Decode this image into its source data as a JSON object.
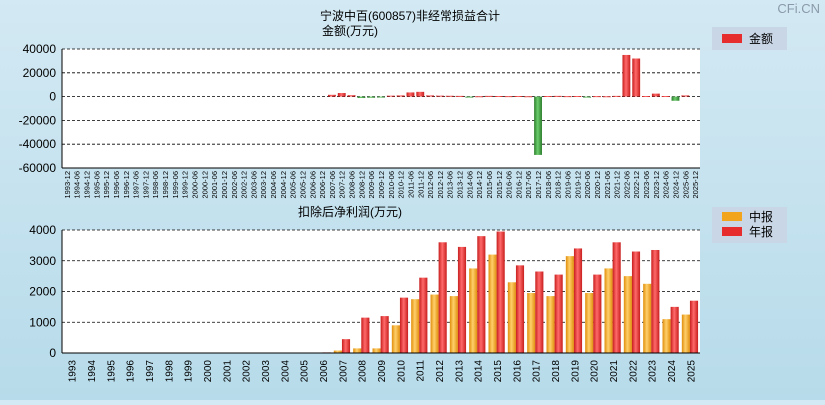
{
  "watermark": "CFi.CN",
  "colors": {
    "plot_bg": "#ffffff",
    "positive_bar": "#e23b3b",
    "negative_bar": "#3c9a3c",
    "interim_bar": "#f2a51c",
    "annual_bar": "#e23b3b",
    "grid": "#000000",
    "legend_bg": "#c9d6e6"
  },
  "chart_data": [
    {
      "type": "bar",
      "title": "宁波中百(600857)非经常损益合计",
      "subtitle": "金额(万元)",
      "legend": [
        "金额"
      ],
      "ylim": [
        -60000,
        40000
      ],
      "yticks": [
        40000,
        20000,
        0,
        -20000,
        -40000,
        -60000
      ],
      "ytick_labels": [
        "40000",
        "20000",
        "0",
        "-20000",
        "-40000",
        "-60000"
      ],
      "categories": [
        "1993-12",
        "1994-06",
        "1994-12",
        "1995-06",
        "1995-12",
        "1996-06",
        "1996-12",
        "1997-06",
        "1997-12",
        "1998-06",
        "1998-12",
        "1999-06",
        "1999-12",
        "2000-06",
        "2000-12",
        "2001-06",
        "2001-12",
        "2002-06",
        "2002-12",
        "2003-06",
        "2003-12",
        "2004-06",
        "2004-12",
        "2005-06",
        "2005-12",
        "2006-06",
        "2006-12",
        "2007-06",
        "2007-12",
        "2008-06",
        "2008-12",
        "2009-06",
        "2009-12",
        "2010-06",
        "2010-12",
        "2011-06",
        "2011-12",
        "2012-06",
        "2012-12",
        "2013-06",
        "2013-12",
        "2014-06",
        "2014-12",
        "2015-06",
        "2015-12",
        "2016-06",
        "2016-12",
        "2017-06",
        "2017-12",
        "2018-06",
        "2018-12",
        "2019-06",
        "2019-12",
        "2020-06",
        "2020-12",
        "2021-06",
        "2021-12",
        "2022-06",
        "2022-12",
        "2023-06",
        "2023-12",
        "2024-06",
        "2024-12",
        "2025-06",
        "2025-12"
      ],
      "values": [
        null,
        null,
        null,
        null,
        null,
        null,
        null,
        null,
        null,
        null,
        null,
        null,
        null,
        null,
        null,
        null,
        null,
        null,
        null,
        null,
        null,
        null,
        null,
        null,
        null,
        null,
        null,
        1500,
        3000,
        1200,
        -1200,
        -1000,
        -800,
        800,
        1000,
        3500,
        4000,
        1000,
        800,
        700,
        600,
        -400,
        300,
        600,
        500,
        400,
        500,
        300,
        -49000,
        500,
        600,
        400,
        500,
        -600,
        400,
        300,
        600,
        35000,
        32000,
        500,
        2500,
        500,
        -3500,
        1000,
        null
      ]
    },
    {
      "type": "bar",
      "title": "扣除后净利润(万元)",
      "legend": [
        "中报",
        "年报"
      ],
      "ylim": [
        0,
        4000
      ],
      "yticks": [
        4000,
        3000,
        2000,
        1000,
        0
      ],
      "ytick_labels": [
        "4000",
        "3000",
        "2000",
        "1000",
        "0"
      ],
      "categories": [
        "1993",
        "1994",
        "1995",
        "1996",
        "1997",
        "1998",
        "1999",
        "2000",
        "2001",
        "2002",
        "2003",
        "2004",
        "2005",
        "2006",
        "2007",
        "2008",
        "2009",
        "2010",
        "2011",
        "2012",
        "2013",
        "2014",
        "2015",
        "2016",
        "2017",
        "2018",
        "2019",
        "2020",
        "2021",
        "2022",
        "2023",
        "2024",
        "2025"
      ],
      "series": [
        {
          "name": "中报",
          "values": [
            null,
            null,
            null,
            null,
            null,
            null,
            null,
            null,
            null,
            null,
            null,
            null,
            null,
            null,
            80,
            150,
            150,
            900,
            1750,
            1900,
            1850,
            2750,
            3200,
            2300,
            1950,
            1850,
            3150,
            1950,
            2750,
            2500,
            2250,
            1100,
            1250
          ]
        },
        {
          "name": "年报",
          "values": [
            null,
            null,
            null,
            null,
            null,
            null,
            null,
            null,
            null,
            null,
            null,
            null,
            null,
            20,
            450,
            1150,
            1200,
            1800,
            2450,
            3600,
            3450,
            3800,
            3950,
            2850,
            2650,
            2550,
            3400,
            2550,
            3600,
            3300,
            3350,
            1500,
            1700
          ]
        }
      ]
    }
  ]
}
